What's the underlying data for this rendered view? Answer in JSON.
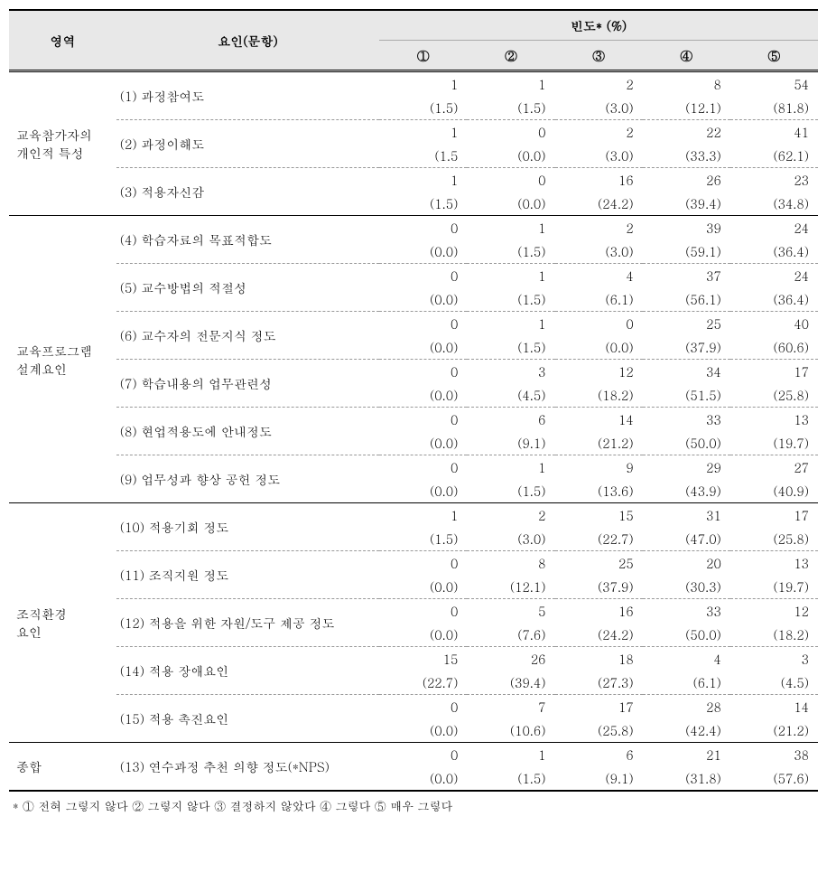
{
  "headers": {
    "area": "영역",
    "factor": "요인(문항)",
    "freq": "빈도* (%)",
    "cols": [
      "①",
      "②",
      "③",
      "④",
      "⑤"
    ]
  },
  "sections": [
    {
      "category": "교육참가자의\n개인적 특성",
      "rows": [
        {
          "factor": "(1) 과정참여도",
          "counts": [
            "1",
            "1",
            "2",
            "8",
            "54"
          ],
          "pcts": [
            "(1.5)",
            "(1.5)",
            "(3.0)",
            "(12.1)",
            "(81.8)"
          ]
        },
        {
          "factor": "(2) 과정이해도",
          "counts": [
            "1",
            "0",
            "2",
            "22",
            "41"
          ],
          "pcts": [
            "(1.5",
            "(0.0)",
            "(3.0)",
            "(33.3)",
            "(62.1)"
          ]
        },
        {
          "factor": "(3) 적용자신감",
          "counts": [
            "1",
            "0",
            "16",
            "26",
            "23"
          ],
          "pcts": [
            "(1.5)",
            "(0.0)",
            "(24.2)",
            "(39.4)",
            "(34.8)"
          ]
        }
      ]
    },
    {
      "category": "교육프로그램\n설계요인",
      "rows": [
        {
          "factor": "(4) 학습자료의 목표적합도",
          "counts": [
            "0",
            "1",
            "2",
            "39",
            "24"
          ],
          "pcts": [
            "(0.0)",
            "(1.5)",
            "(3.0)",
            "(59.1)",
            "(36.4)"
          ]
        },
        {
          "factor": "(5) 교수방법의 적절성",
          "counts": [
            "0",
            "1",
            "4",
            "37",
            "24"
          ],
          "pcts": [
            "(0.0)",
            "(1.5)",
            "(6.1)",
            "(56.1)",
            "(36.4)"
          ]
        },
        {
          "factor": "(6) 교수자의 전문지식 정도",
          "counts": [
            "0",
            "1",
            "0",
            "25",
            "40"
          ],
          "pcts": [
            "(0.0)",
            "(1.5)",
            "(0.0)",
            "(37.9)",
            "(60.6)"
          ]
        },
        {
          "factor": "(7) 학습내용의 업무관련성",
          "counts": [
            "0",
            "3",
            "12",
            "34",
            "17"
          ],
          "pcts": [
            "(0.0)",
            "(4.5)",
            "(18.2)",
            "(51.5)",
            "(25.8)"
          ]
        },
        {
          "factor": "(8) 현업적용도에 안내정도",
          "counts": [
            "0",
            "6",
            "14",
            "33",
            "13"
          ],
          "pcts": [
            "(0.0)",
            "(9.1)",
            "(21.2)",
            "(50.0)",
            "(19.7)"
          ]
        },
        {
          "factor": "(9) 업무성과 향상 공헌 정도",
          "counts": [
            "0",
            "1",
            "9",
            "29",
            "27"
          ],
          "pcts": [
            "(0.0)",
            "(1.5)",
            "(13.6)",
            "(43.9)",
            "(40.9)"
          ]
        }
      ]
    },
    {
      "category": "조직환경\n요인",
      "rows": [
        {
          "factor": "(10) 적용기회 정도",
          "counts": [
            "1",
            "2",
            "15",
            "31",
            "17"
          ],
          "pcts": [
            "(1.5)",
            "(3.0)",
            "(22.7)",
            "(47.0)",
            "(25.8)"
          ]
        },
        {
          "factor": "(11) 조직지원 정도",
          "counts": [
            "0",
            "8",
            "25",
            "20",
            "13"
          ],
          "pcts": [
            "(0.0)",
            "(12.1)",
            "(37.9)",
            "(30.3)",
            "(19.7)"
          ]
        },
        {
          "factor": "(12) 적용을 위한 자원/도구 제공 정도",
          "counts": [
            "0",
            "5",
            "16",
            "33",
            "12"
          ],
          "pcts": [
            "(0.0)",
            "(7.6)",
            "(24.2)",
            "(50.0)",
            "(18.2)"
          ]
        },
        {
          "factor": "(14) 적용 장애요인",
          "counts": [
            "15",
            "26",
            "18",
            "4",
            "3"
          ],
          "pcts": [
            "(22.7)",
            "(39.4)",
            "(27.3)",
            "(6.1)",
            "(4.5)"
          ]
        },
        {
          "factor": "(15) 적용 촉진요인",
          "counts": [
            "0",
            "7",
            "17",
            "28",
            "14"
          ],
          "pcts": [
            "(0.0)",
            "(10.6)",
            "(25.8)",
            "(42.4)",
            "(21.2)"
          ]
        }
      ]
    },
    {
      "category": "종합",
      "rows": [
        {
          "factor": "(13) 연수과정 추천 의향 정도(*NPS)",
          "counts": [
            "0",
            "1",
            "6",
            "21",
            "38"
          ],
          "pcts": [
            "(0.0)",
            "(1.5)",
            "(9.1)",
            "(31.8)",
            "(57.6)"
          ]
        }
      ]
    }
  ],
  "footnote": "* ① 전혀 그렇지 않다  ② 그렇지 않다 ③ 결정하지 않았다 ④ 그렇다 ⑤ 매우 그렇다"
}
